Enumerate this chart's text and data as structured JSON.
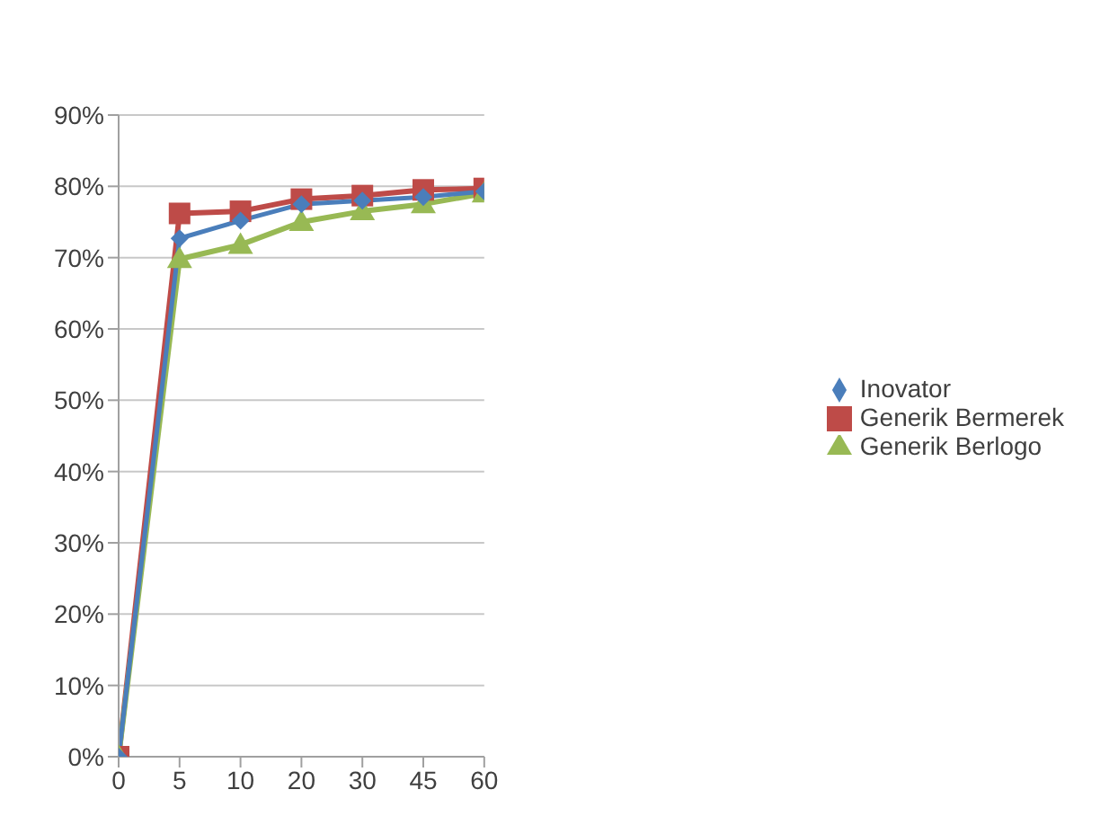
{
  "chart_data": {
    "type": "line",
    "categories": [
      "0",
      "5",
      "10",
      "20",
      "30",
      "45",
      "60"
    ],
    "series": [
      {
        "name": "Inovator",
        "color": "#4a7ebb",
        "marker": "diamond",
        "values": [
          0,
          72.7,
          75.2,
          77.5,
          78,
          78.5,
          79.3
        ]
      },
      {
        "name": "Generik Bermerek",
        "color": "#be4b48",
        "marker": "square",
        "values": [
          0,
          76.2,
          76.5,
          78.2,
          78.7,
          79.5,
          79.7
        ]
      },
      {
        "name": "Generik Berlogo",
        "color": "#98b954",
        "marker": "triangle",
        "values": [
          0,
          69.8,
          71.8,
          75,
          76.5,
          77.5,
          79
        ]
      }
    ],
    "ylim": [
      0,
      90
    ],
    "yticks": [
      {
        "value": 0,
        "label": "0%"
      },
      {
        "value": 10,
        "label": "10%"
      },
      {
        "value": 20,
        "label": "20%"
      },
      {
        "value": 30,
        "label": "30%"
      },
      {
        "value": 40,
        "label": "40%"
      },
      {
        "value": 50,
        "label": "50%"
      },
      {
        "value": 60,
        "label": "60%"
      },
      {
        "value": 70,
        "label": "70%"
      },
      {
        "value": 80,
        "label": "80%"
      },
      {
        "value": 90,
        "label": "90%"
      }
    ],
    "grid": "y",
    "legend": "right",
    "line_style": "solid"
  }
}
